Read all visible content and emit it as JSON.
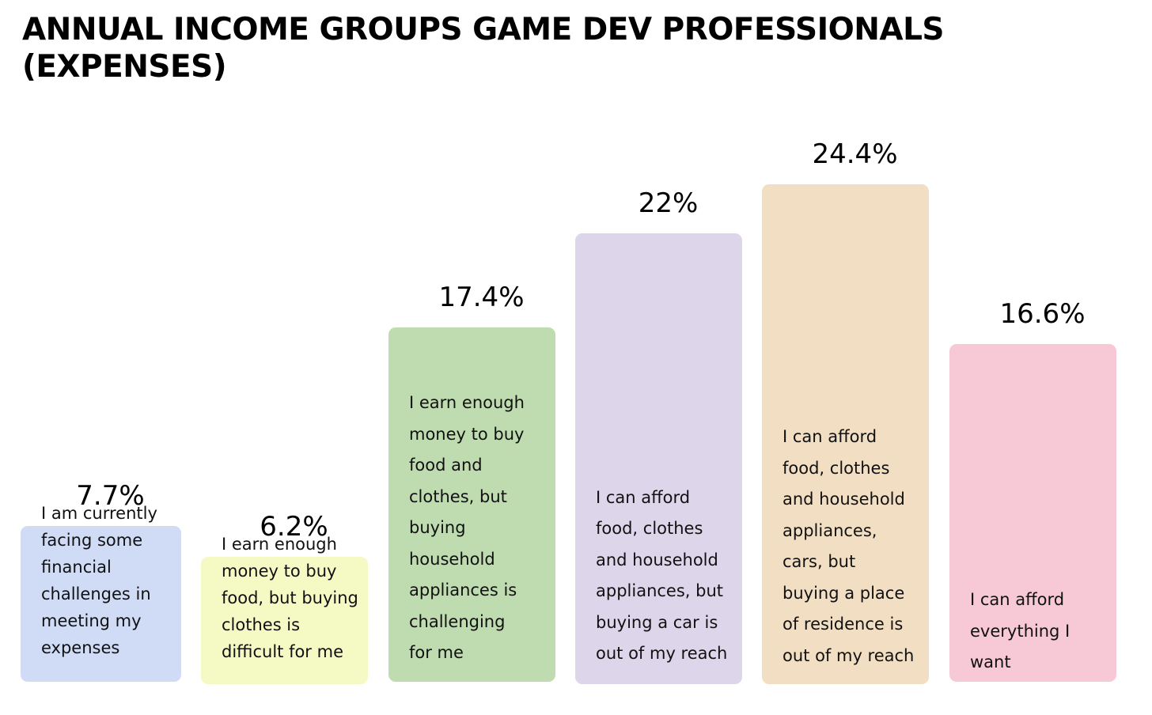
{
  "chart_data": {
    "type": "bar",
    "title_lines": [
      "ANNUAL INCOME GROUPS GAME DEV PROFESSIONALS",
      "(EXPENSES)"
    ],
    "categories": [
      [
        "I am currently",
        "facing some",
        "financial",
        "challenges in",
        "meeting my",
        "expenses"
      ],
      [
        "I earn enough",
        "money to buy",
        "food, but buying",
        "clothes is",
        "difficult for me"
      ],
      [
        "I earn enough",
        "money to buy",
        "food and",
        "clothes, but",
        "buying",
        "household",
        "appliances is",
        "challenging",
        "for me"
      ],
      [
        "I can afford",
        "food, clothes",
        "and household",
        "appliances, but",
        "buying a car is",
        "out of my reach"
      ],
      [
        "I can afford",
        "food, clothes",
        "and household",
        "appliances,",
        "cars, but",
        "buying a place",
        "of residence is",
        "out of my reach"
      ],
      [
        "I can afford",
        "everything I",
        "want"
      ]
    ],
    "values": [
      7.7,
      6.2,
      17.4,
      22,
      24.4,
      16.6
    ],
    "value_labels": [
      "7.7%",
      "6.2%",
      "17.4%",
      "22%",
      "24.4%",
      "16.6%"
    ],
    "colors": [
      "#d0dcf6",
      "#f5f9c4",
      "#bfdcb0",
      "#ddd6ea",
      "#f2dfc3",
      "#f7c9d6"
    ],
    "ylim": [
      0,
      24.4
    ],
    "grid": false,
    "legend": "none"
  }
}
